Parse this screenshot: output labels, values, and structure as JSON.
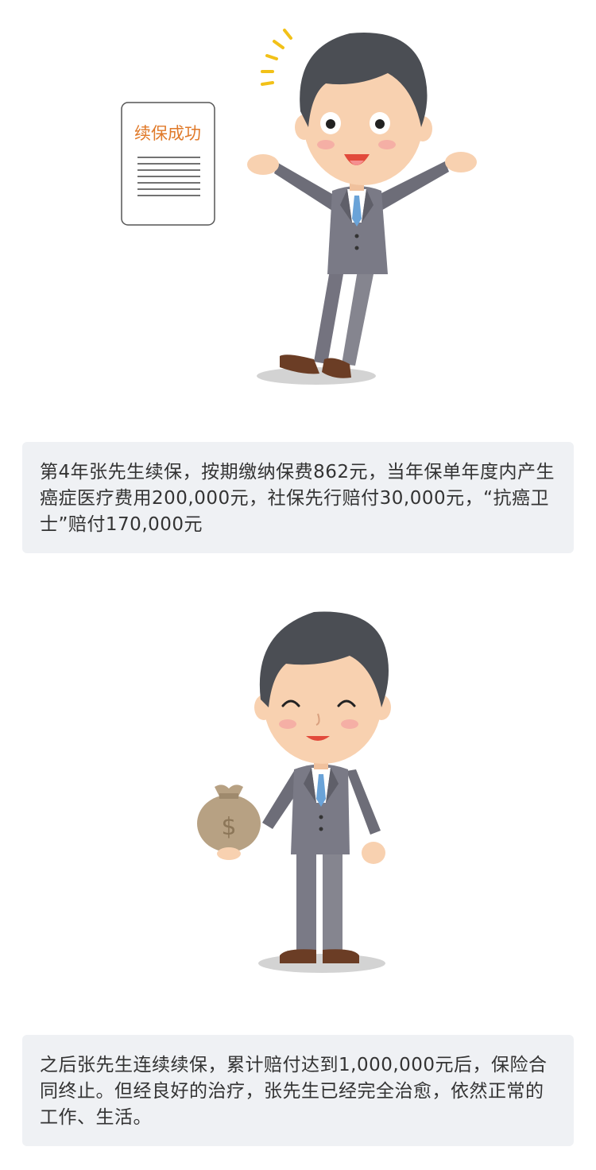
{
  "scene1": {
    "document_title": "续保成功",
    "document_title_color": "#e07a2a"
  },
  "caption1": {
    "text": "第4年张先生续保，按期缴纳保费862元，当年保单年度内产生癌症医疗费用200,000元，社保先行赔付30,000元，“抗癌卫士”赔付170,000元"
  },
  "caption2": {
    "text": "之后张先生连续续保，累计赔付达到1,000,000元后，保险合同终止。但经良好的治疗，张先生已经完全治愈，依然正常的工作、生活。"
  },
  "colors": {
    "caption_bg": "#eff1f4",
    "suit": "#7a7a86",
    "hair": "#4b4e54",
    "skin": "#f8d1b0",
    "money_bag": "#b7a183"
  }
}
